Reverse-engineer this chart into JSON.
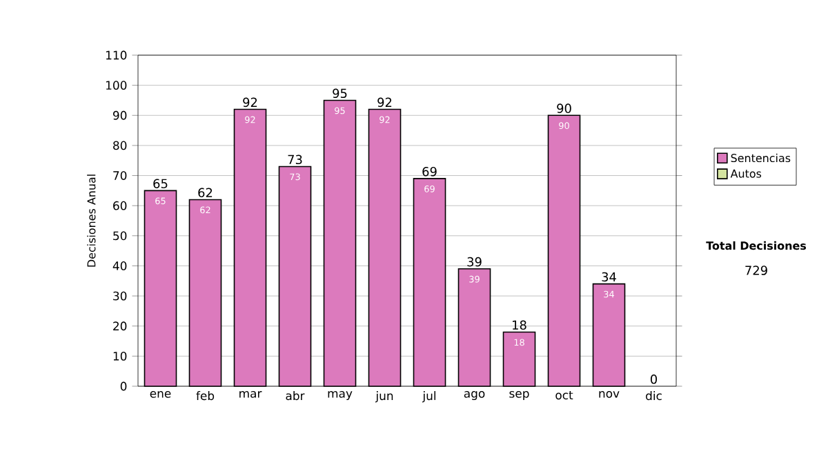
{
  "chart_data": {
    "type": "bar",
    "stacked": true,
    "ylabel": "Decisiones Anual",
    "categories": [
      "ene",
      "feb",
      "mar",
      "abr",
      "may",
      "jun",
      "jul",
      "ago",
      "sep",
      "oct",
      "nov",
      "dic"
    ],
    "series": [
      {
        "name": "Sentencias",
        "color": "#dc7abd",
        "values": [
          65,
          62,
          92,
          73,
          95,
          92,
          69,
          39,
          18,
          90,
          34,
          0
        ],
        "value_labels": [
          "65",
          "62",
          "92",
          "73",
          "95",
          "92",
          "69",
          "39",
          "18",
          "90",
          "34",
          null
        ]
      },
      {
        "name": "Autos",
        "color": "#d4e4a0",
        "values": [
          0,
          0,
          0,
          0,
          0,
          0,
          0,
          0,
          0,
          0,
          0,
          0
        ]
      }
    ],
    "totals": [
      "65",
      "62",
      "92",
      "73",
      "95",
      "92",
      "69",
      "39",
      "18",
      "90",
      "34",
      "0"
    ],
    "ylim": [
      0,
      110
    ],
    "yticks": [
      0,
      10,
      20,
      30,
      40,
      50,
      60,
      70,
      80,
      90,
      100,
      110
    ],
    "grid": "y",
    "legend": "right",
    "annotations": [
      "Total Decisiones",
      "729"
    ]
  }
}
